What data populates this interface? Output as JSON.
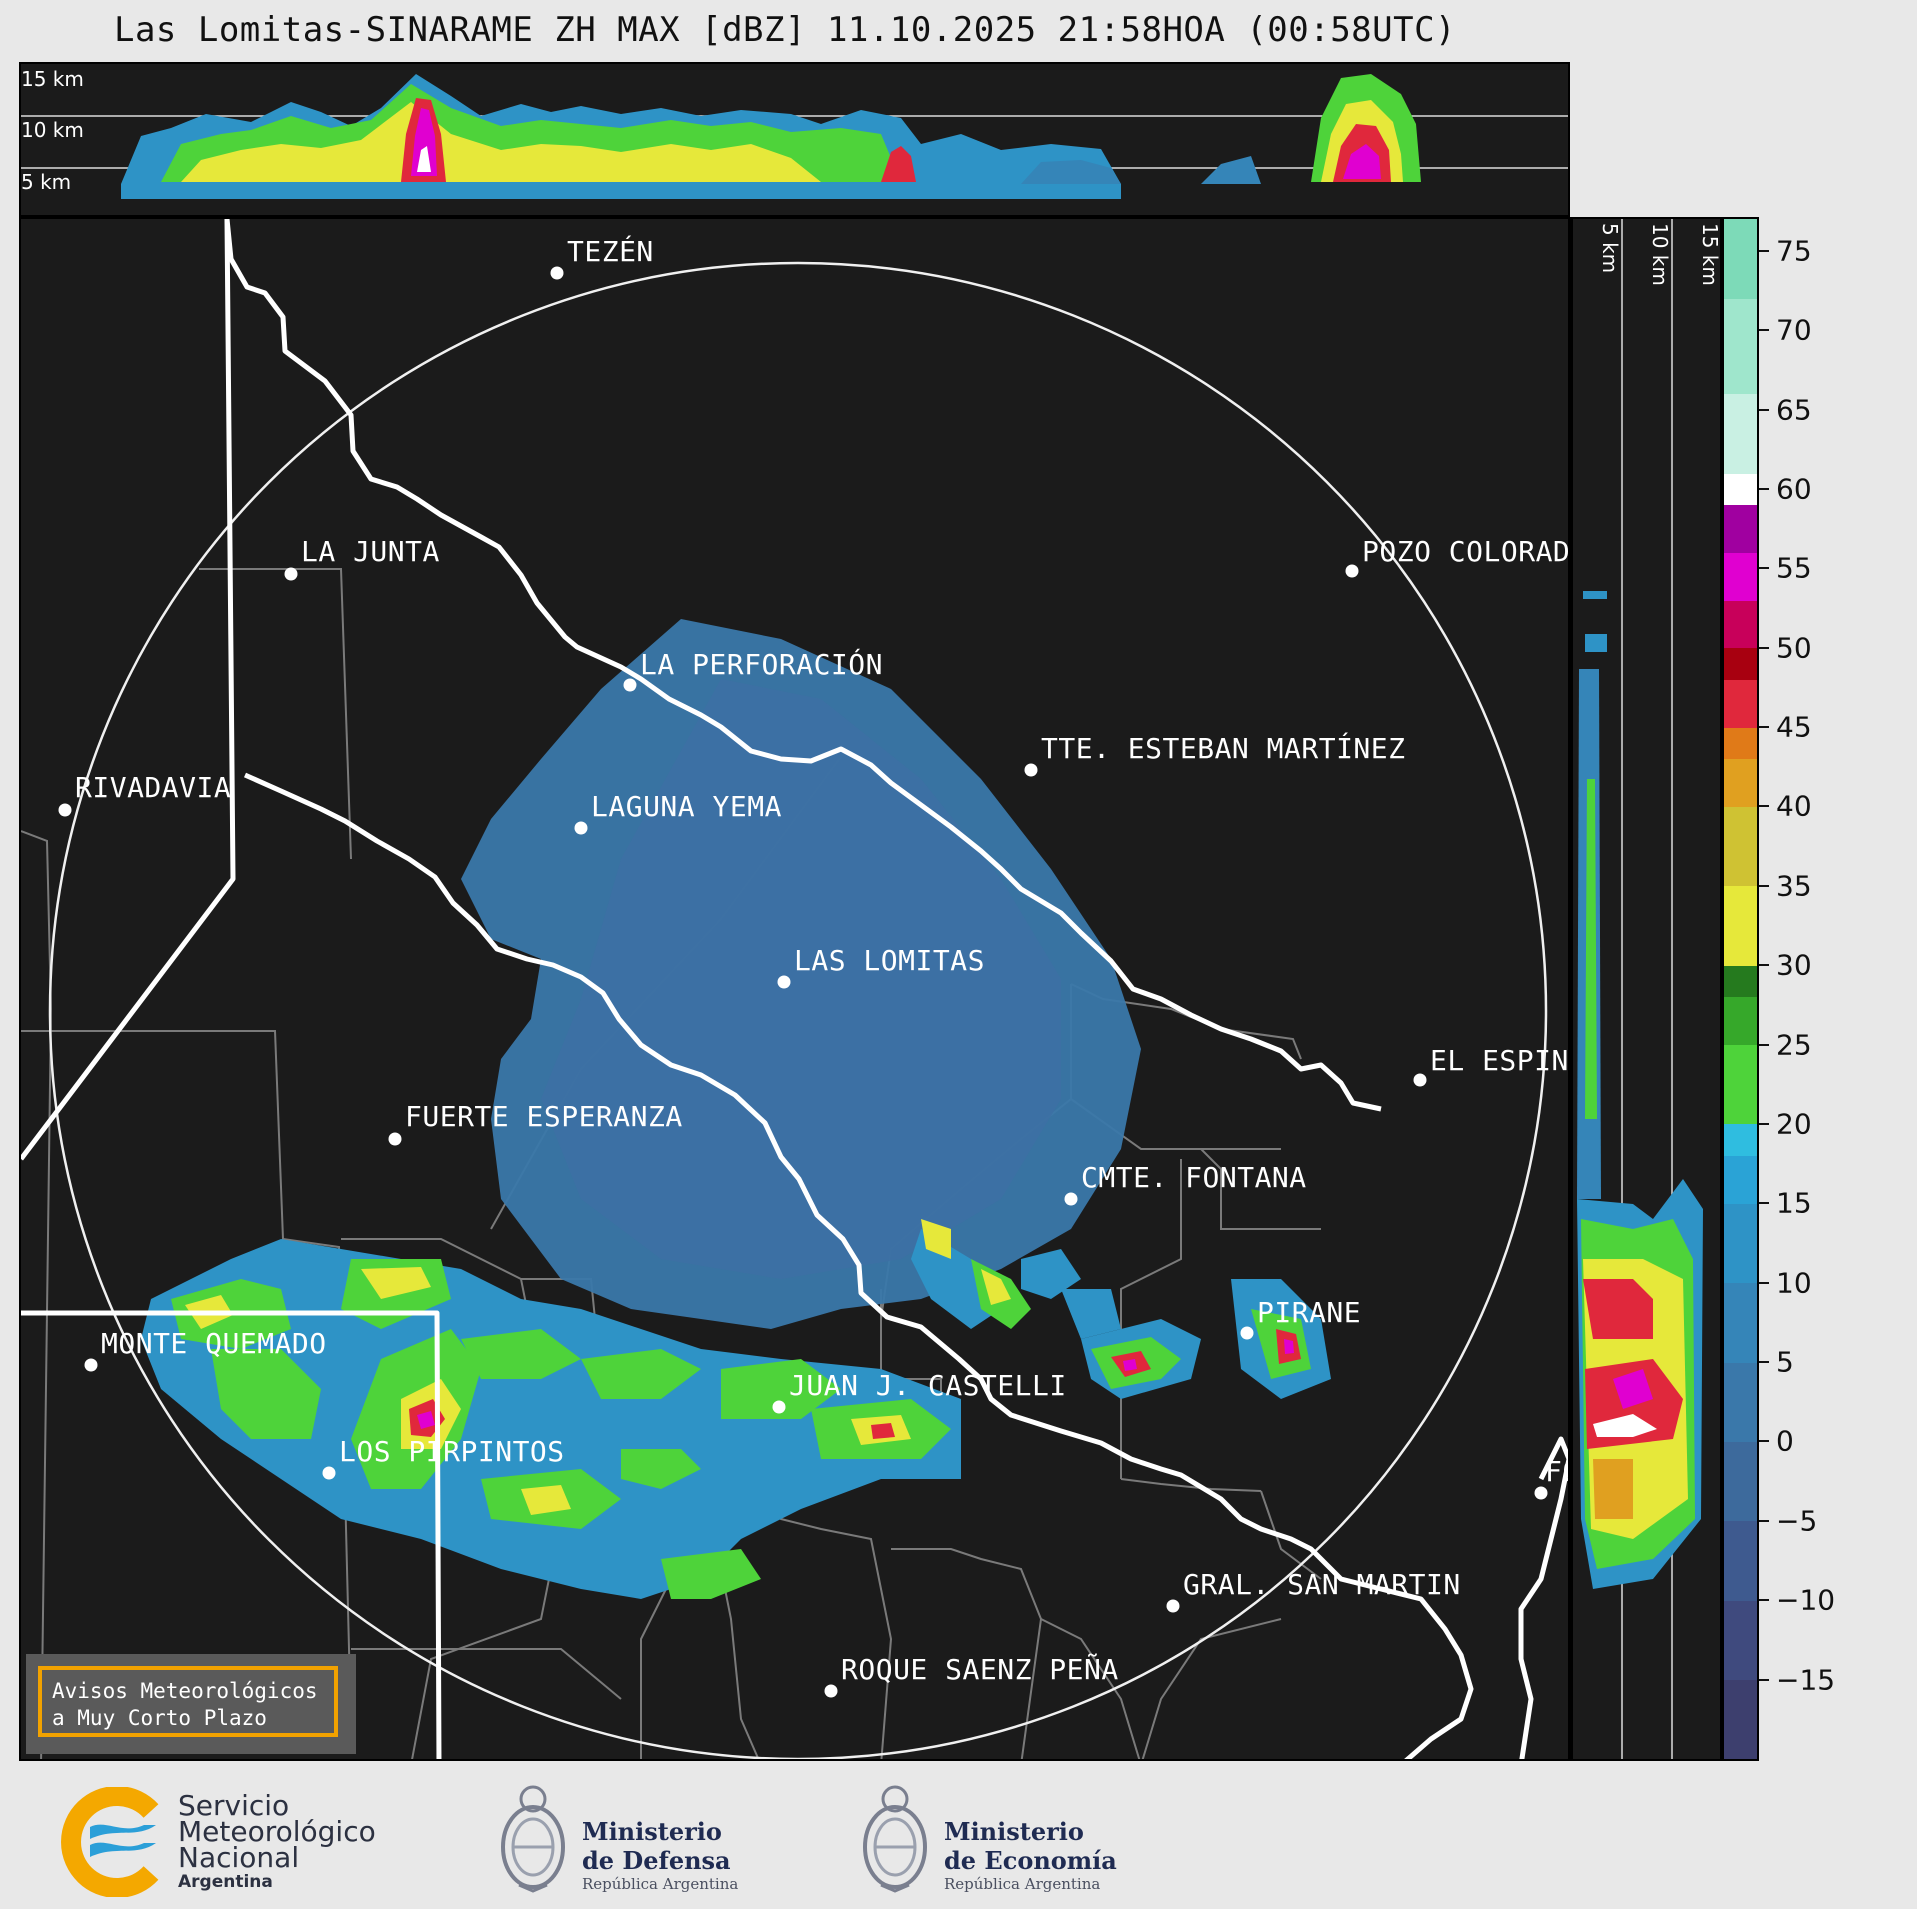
{
  "title": "Las Lomitas-SINARAME ZH MAX [dBZ] 11.10.2025 21:58HOA (00:58UTC)",
  "top_panel": {
    "labels": [
      "15 km",
      "10 km",
      "5 km"
    ]
  },
  "side_panel": {
    "labels": [
      "5 km",
      "10 km",
      "15 km"
    ]
  },
  "map": {
    "cities": [
      {
        "name": "TEZÉN"
      },
      {
        "name": "LA JUNTA"
      },
      {
        "name": "POZO COLORAD"
      },
      {
        "name": "LA PERFORACIÓN"
      },
      {
        "name": "TTE. ESTEBAN MARTÍNEZ"
      },
      {
        "name": "RIVADAVIA"
      },
      {
        "name": "LAGUNA YEMA"
      },
      {
        "name": "LAS LOMITAS"
      },
      {
        "name": "EL ESPIN"
      },
      {
        "name": "FUERTE ESPERANZA"
      },
      {
        "name": "CMTE. FONTANA"
      },
      {
        "name": "PIRANE"
      },
      {
        "name": "MONTE QUEMADO"
      },
      {
        "name": "JUAN J. CASTELLI"
      },
      {
        "name": "LOS PIRPINTOS"
      },
      {
        "name": "FO"
      },
      {
        "name": "GRAL. SAN MARTIN"
      },
      {
        "name": "ROQUE SAENZ PEÑA"
      }
    ]
  },
  "colorbar": {
    "min": -20,
    "max": 77,
    "ticks": [
      "75",
      "70",
      "65",
      "60",
      "55",
      "50",
      "45",
      "40",
      "35",
      "30",
      "25",
      "20",
      "15",
      "10",
      "5",
      "0",
      "−5",
      "−10",
      "−15"
    ],
    "tick_values": [
      75,
      70,
      65,
      60,
      55,
      50,
      45,
      40,
      35,
      30,
      25,
      20,
      15,
      10,
      5,
      0,
      -5,
      -10,
      -15
    ],
    "bands": [
      {
        "from": -20,
        "to": -15,
        "color": "#3d3f6e"
      },
      {
        "from": -15,
        "to": -10,
        "color": "#3f4a7e"
      },
      {
        "from": -10,
        "to": -5,
        "color": "#3e5a8f"
      },
      {
        "from": -5,
        "to": 0,
        "color": "#3d6a9c"
      },
      {
        "from": 0,
        "to": 5,
        "color": "#3a78aa"
      },
      {
        "from": 5,
        "to": 10,
        "color": "#3585b8"
      },
      {
        "from": 10,
        "to": 15,
        "color": "#2e93c6"
      },
      {
        "from": 15,
        "to": 18,
        "color": "#2aa3d6"
      },
      {
        "from": 18,
        "to": 20,
        "color": "#2fbde0"
      },
      {
        "from": 20,
        "to": 25,
        "color": "#4ed33a"
      },
      {
        "from": 25,
        "to": 28,
        "color": "#36a82a"
      },
      {
        "from": 28,
        "to": 30,
        "color": "#257a1e"
      },
      {
        "from": 30,
        "to": 35,
        "color": "#e6e83a"
      },
      {
        "from": 35,
        "to": 40,
        "color": "#cfc233"
      },
      {
        "from": 40,
        "to": 43,
        "color": "#e0a020"
      },
      {
        "from": 43,
        "to": 45,
        "color": "#e07a18"
      },
      {
        "from": 45,
        "to": 48,
        "color": "#e0283c"
      },
      {
        "from": 48,
        "to": 50,
        "color": "#a80010"
      },
      {
        "from": 50,
        "to": 53,
        "color": "#c8005a"
      },
      {
        "from": 53,
        "to": 56,
        "color": "#e000d0"
      },
      {
        "from": 56,
        "to": 59,
        "color": "#a000a0"
      },
      {
        "from": 59,
        "to": 61,
        "color": "#ffffff"
      },
      {
        "from": 61,
        "to": 66,
        "color": "#c9f0e3"
      },
      {
        "from": 66,
        "to": 72,
        "color": "#9fe6cc"
      },
      {
        "from": 72,
        "to": 77,
        "color": "#7ddab8"
      }
    ]
  },
  "avisos": {
    "line1": "Avisos Meteorológicos",
    "line2": "a Muy Corto Plazo"
  },
  "footer": {
    "smn": {
      "line1": "Servicio",
      "line2": "Meteorológico",
      "line3": "Nacional",
      "line4": "Argentina"
    },
    "defensa": {
      "line1": "Ministerio",
      "line2": "de Defensa",
      "line3": "República Argentina"
    },
    "economia": {
      "line1": "Ministerio",
      "line2": "de Economía",
      "line3": "República Argentina"
    }
  }
}
